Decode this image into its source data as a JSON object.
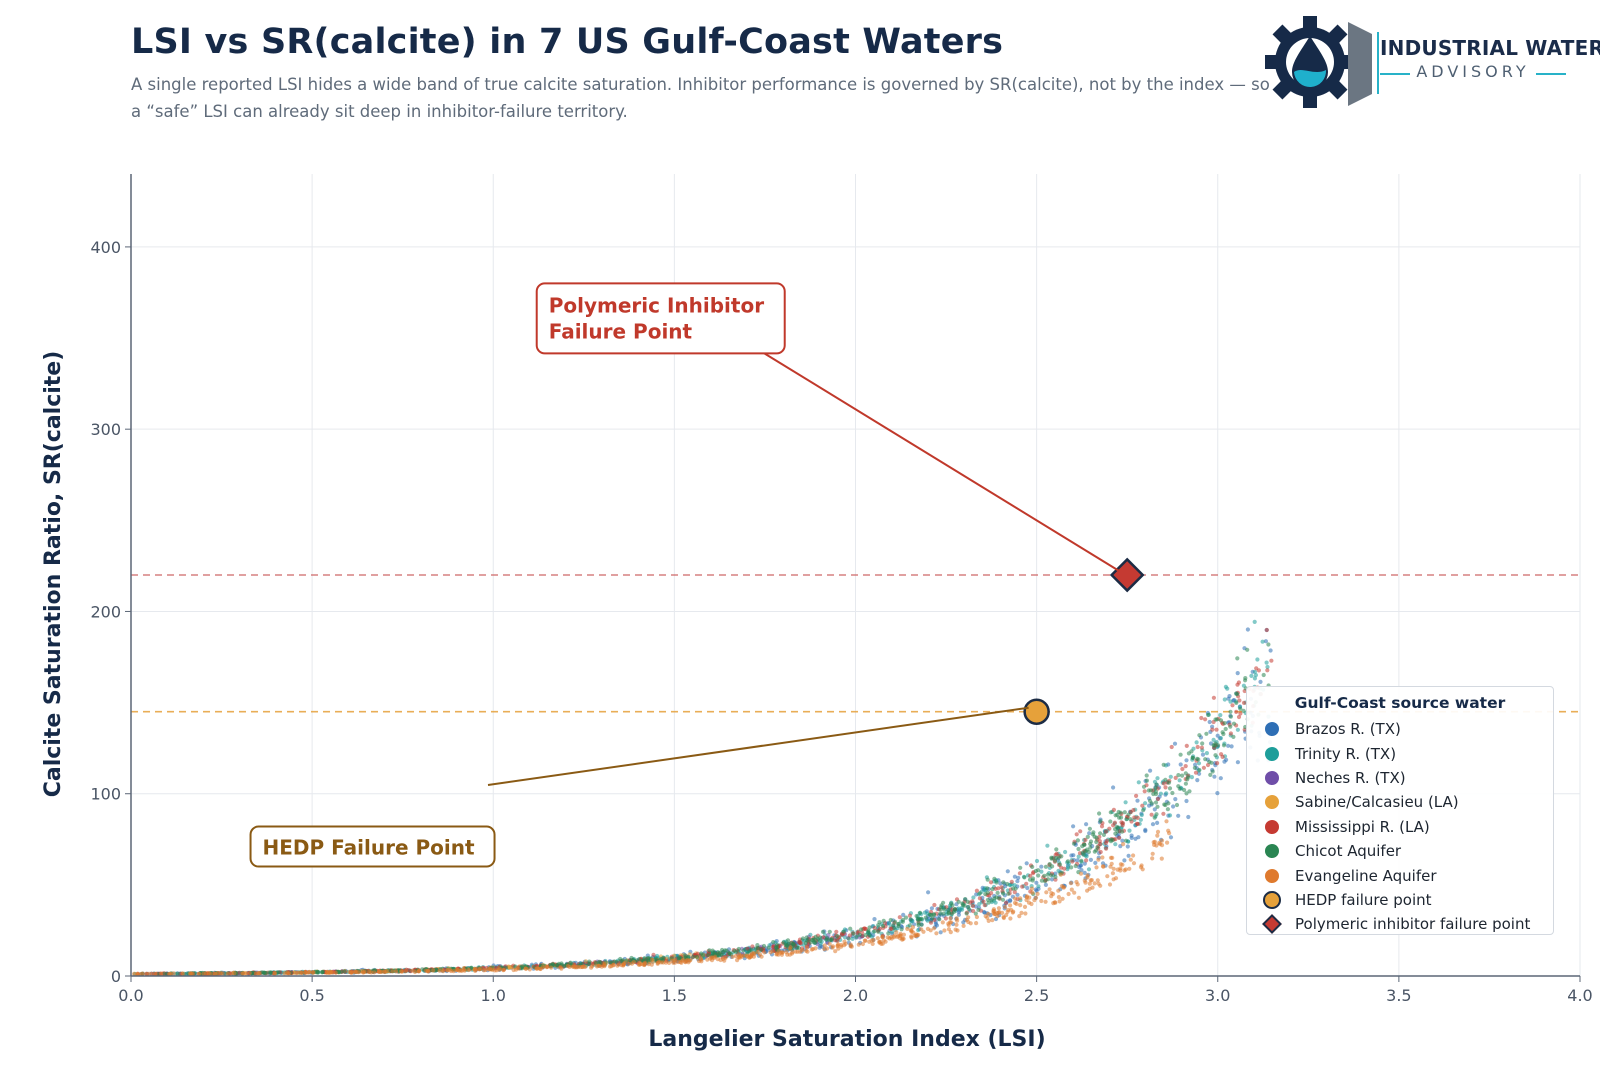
{
  "header": {
    "title": "LSI vs SR(calcite) in 7 US Gulf-Coast Waters",
    "subtitle": "A single reported LSI hides a wide band of true calcite saturation. Inhibitor performance is governed by SR(calcite), not by the index — so a “safe” LSI can already sit deep in inhibitor-failure territory."
  },
  "brand": {
    "name_line1": "INDUSTRIAL WATER",
    "name_line2": "ADVISORY",
    "logo_icon": "gear-water-drop-icon",
    "colors": {
      "gear": "#162a48",
      "drop": "#1fb0cc",
      "accent": "#28b2c8",
      "frame": "#6b7682"
    }
  },
  "chart_data": {
    "type": "scatter",
    "xlabel": "Langelier Saturation Index  (LSI)",
    "ylabel": "Calcite Saturation Ratio,  SR(calcite)",
    "xlim": [
      0,
      4
    ],
    "ylim": [
      0,
      440
    ],
    "x_ticks": [
      "0.0",
      "0.5",
      "1.0",
      "1.5",
      "2.0",
      "2.5",
      "3.0",
      "3.5",
      "4.0"
    ],
    "y_ticks": [
      "0",
      "100",
      "200",
      "300",
      "400"
    ],
    "x_tick_values": [
      0,
      0.5,
      1,
      1.5,
      2,
      2.5,
      3,
      3.5,
      4
    ],
    "y_tick_values": [
      0,
      100,
      200,
      300,
      400
    ],
    "grid": true,
    "legend_title": "Gulf-Coast source water",
    "legend_position": "lower-right",
    "series": [
      {
        "name": "Brazos R. (TX)",
        "color": "#2e6fb5",
        "lsi_range": [
          0.0,
          3.15
        ],
        "band": "main-wide-low"
      },
      {
        "name": "Trinity R. (TX)",
        "color": "#1e9e9a",
        "lsi_range": [
          0.0,
          3.15
        ],
        "band": "main"
      },
      {
        "name": "Neches R. (TX)",
        "color": "#6f4ea8",
        "lsi_range": [
          0.0,
          2.05
        ],
        "band": "main"
      },
      {
        "name": "Sabine/Calcasieu (LA)",
        "color": "#e6a13a",
        "lsi_range": [
          0.0,
          1.6
        ],
        "band": "main"
      },
      {
        "name": "Mississippi R. (LA)",
        "color": "#c53a32",
        "lsi_range": [
          0.0,
          3.15
        ],
        "band": "main"
      },
      {
        "name": "Chicot Aquifer",
        "color": "#2a8552",
        "lsi_range": [
          0.0,
          3.15
        ],
        "band": "main"
      },
      {
        "name": "Evangeline Aquifer",
        "color": "#df7a2e",
        "lsi_range": [
          0.0,
          2.87
        ],
        "band": "lower"
      }
    ],
    "thresholds": [
      {
        "name": "HEDP failure point",
        "y": 145,
        "color": "#e6a13a",
        "style": "dashed"
      },
      {
        "name": "Polymeric inhibitor failure point",
        "y": 220,
        "color": "#cf6b6b",
        "style": "dashed"
      }
    ],
    "failure_points": [
      {
        "name": "HEDP failure point",
        "x": 2.5,
        "y": 145,
        "marker": "circle",
        "color": "#e6a13a"
      },
      {
        "name": "Polymeric inhibitor failure point",
        "x": 2.75,
        "y": 220,
        "marker": "diamond",
        "color": "#c53a32"
      }
    ],
    "annotations": [
      {
        "text_line1": "Polymeric Inhibitor",
        "text_line2": "Failure Point",
        "color": "#c0392b",
        "box_x": 1.12,
        "box_y": 380,
        "target_x": 2.75,
        "target_y": 220
      },
      {
        "text_line1": "HEDP Failure Point",
        "text_line2": "",
        "color": "#8a5a14",
        "box_x": 0.33,
        "box_y": 82,
        "target_x": 2.5,
        "target_y": 145
      }
    ]
  }
}
